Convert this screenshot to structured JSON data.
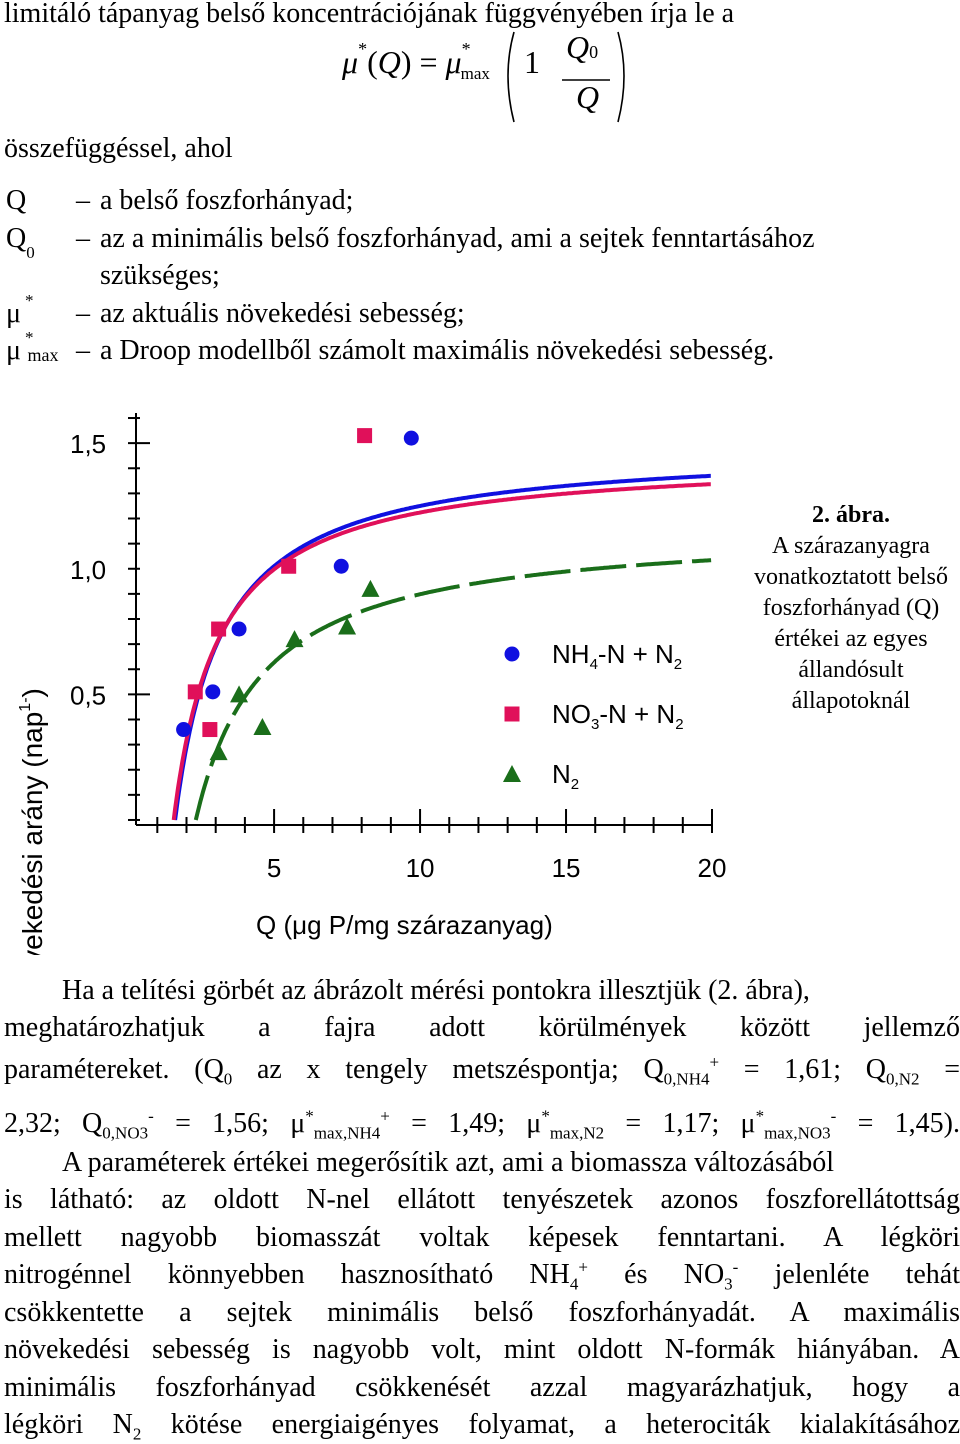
{
  "intro_line": "limitáló tápanyag belső koncentrációjának függvényében írja le a",
  "equation": {
    "mu": "μ",
    "star": "*",
    "Q": "Q",
    "equals": "=",
    "max": "max",
    "one": "1",
    "minus": "−",
    "Q0_num": "Q",
    "zero": "0",
    "Q_den": "Q",
    "open_paren": "(",
    "close_paren": ")"
  },
  "after_eq": "összefüggéssel, ahol",
  "definitions": [
    {
      "symbol": "Q",
      "symbol_sub": "",
      "symbol_sup": "",
      "dash": "–",
      "text": "a belső foszforhányad;"
    },
    {
      "symbol": "Q",
      "symbol_sub": "0",
      "symbol_sup": "",
      "dash": "–",
      "text": "az a minimális belső foszforhányad, ami a sejtek fenntartásához"
    },
    {
      "symbol": "",
      "symbol_sub": "",
      "symbol_sup": "",
      "dash": "",
      "text": "szükséges;"
    },
    {
      "symbol": "μ",
      "symbol_sub": "",
      "symbol_sup": "*",
      "dash": "–",
      "text": "az aktuális növekedési sebesség;"
    },
    {
      "symbol": "μ",
      "symbol_sub": "max",
      "symbol_sup": "*",
      "dash": "–",
      "text": "a Droop modellből számolt maximális növekedési sebesség."
    }
  ],
  "chart_data": {
    "type": "scatter",
    "ylabel": "növekedési arány (nap",
    "ylabel_sup": "1-",
    "ylabel_end": ")",
    "xlabel": "Q  (μg P/mg szárazanyag)",
    "x_ticks": [
      "5",
      "10",
      "15",
      "20"
    ],
    "x_tick_values": [
      5,
      10,
      15,
      20
    ],
    "y_ticks": [
      "1,5",
      "1,0",
      "0,5"
    ],
    "y_tick_values": [
      1.5,
      1.0,
      0.5
    ],
    "xlim": [
      0.27,
      20
    ],
    "ylim": [
      -0.02,
      1.62
    ],
    "series": [
      {
        "name": "NH4-N + N2",
        "legend_main": "NH",
        "legend_sub1": "4",
        "legend_mid": "-N + N",
        "legend_sub2": "2",
        "marker": "circle",
        "color": "#1010e0",
        "x": [
          1.9,
          2.9,
          3.8,
          7.3,
          9.7
        ],
        "y": [
          0.36,
          0.51,
          0.76,
          1.01,
          1.52
        ],
        "curve": {
          "mu_max": 1.49,
          "q0": 1.61
        }
      },
      {
        "name": "NO3-N + N2",
        "legend_main": "NO",
        "legend_sub1": "3",
        "legend_mid": "-N + N",
        "legend_sub2": "2",
        "marker": "square",
        "color": "#e0105a",
        "x": [
          2.3,
          2.8,
          3.1,
          5.5,
          8.1
        ],
        "y": [
          0.51,
          0.36,
          0.76,
          1.01,
          1.53
        ],
        "curve": {
          "mu_max": 1.45,
          "q0": 1.56
        }
      },
      {
        "name": "N2",
        "legend_main": "N",
        "legend_sub1": "",
        "legend_mid": "",
        "legend_sub2": "2",
        "marker": "triangle",
        "color": "#1a6e1a",
        "x": [
          3.1,
          3.8,
          4.6,
          5.7,
          7.5,
          8.3
        ],
        "y": [
          0.27,
          0.5,
          0.37,
          0.72,
          0.77,
          0.92
        ],
        "curve": {
          "mu_max": 1.17,
          "q0": 2.32
        }
      }
    ]
  },
  "caption": {
    "title": "2. ábra.",
    "text": "A szárazanyagra vonatkoztatott belső foszforhányad (Q) értékei az egyes állandósult állapotoknál"
  },
  "para1": {
    "l1": "Ha a telítési görbét az ábrázolt mérési pontokra illesztjük (2. ábra),",
    "l2": "meghatározhatjuk a fajra adott körülmények között jellemző",
    "l3a": "paramétereket. (Q",
    "l3b": "0",
    "l3c": " az x tengely metszéspontja; Q",
    "l3d": "0,NH4",
    "l3e": "+",
    "l3f": " = 1,61; Q",
    "l3g": "0,N2",
    "l3h": " =",
    "l4a": "2,32; Q",
    "l4b": "0,NO3",
    "l4c": "-",
    "l4d": " = 1,56; μ",
    "l4e": "*",
    "l4f": "max,NH4",
    "l4g": "+",
    "l4h": " = 1,49; μ",
    "l4i": "*",
    "l4j": "max,N2",
    "l4k": " = 1,17; μ",
    "l4l": "*",
    "l4m": "max,NO3",
    "l4n": "-",
    "l4o": " = 1,45)."
  },
  "para2": {
    "l1": "A paraméterek értékei megerősítik azt, ami a biomassza változásából",
    "l2": "is látható: az oldott N-nel ellátott tenyészetek azonos foszforellátottság",
    "l3": "mellett nagyobb biomasszát voltak képesek fenntartani. A légköri",
    "l4a": "nitrogénnel könnyebben hasznosítható NH",
    "l4b": "4",
    "l4c": "+",
    "l4d": " és NO",
    "l4e": "3",
    "l4f": "-",
    "l4g": " jelenléte tehát",
    "l5": "csökkentette a sejtek minimális belső foszforhányadát. A maximális",
    "l6": "növekedési sebesség is nagyobb volt, mint oldott N-formák hiányában. A",
    "l7": "minimális foszforhányad csökkenését azzal magyarázhatjuk, hogy a",
    "l8a": "légköri N",
    "l8b": "2",
    "l8c": " kötése energiaigényes folyamat, a heterociták kialakításához"
  }
}
